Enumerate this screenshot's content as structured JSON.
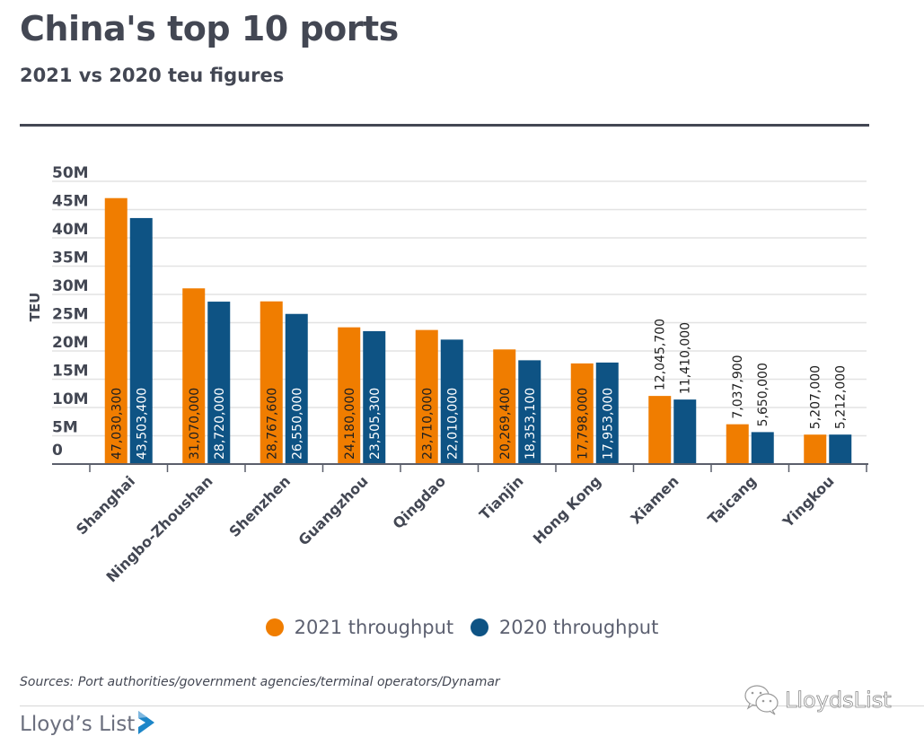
{
  "header": {
    "title": "China's top 10 ports",
    "subtitle": "2021 vs 2020 teu figures"
  },
  "colors": {
    "series_2021": "#f07d00",
    "series_2020": "#0e5384",
    "grid": "#e3e3e3",
    "axis": "#5b5f6b",
    "text": "#434753"
  },
  "chart_data": {
    "type": "bar",
    "title": "China's top 10 ports",
    "subtitle": "2021 vs 2020 teu figures",
    "xlabel": "",
    "ylabel": "TEU",
    "ylim": [
      0,
      50000000
    ],
    "yticks": [
      0,
      5000000,
      10000000,
      15000000,
      20000000,
      25000000,
      30000000,
      35000000,
      40000000,
      45000000,
      50000000
    ],
    "ytick_labels": [
      "0",
      "5M",
      "10M",
      "15M",
      "20M",
      "25M",
      "30M",
      "35M",
      "40M",
      "45M",
      "50M"
    ],
    "grid": true,
    "legend_position": "bottom",
    "categories": [
      "Shanghai",
      "Ningbo-Zhoushan",
      "Shenzhen",
      "Guangzhou",
      "Qingdao",
      "Tianjin",
      "Hong Kong",
      "Xiamen",
      "Taicang",
      "Yingkou"
    ],
    "series": [
      {
        "name": "2021 throughput",
        "color": "#f07d00",
        "values": [
          47030300,
          31070000,
          28767600,
          24180000,
          23710000,
          20269400,
          17798000,
          12045700,
          7037900,
          5207000
        ],
        "labels": [
          "47,030,300",
          "31,070,000",
          "28,767,600",
          "24,180,000",
          "23,710,000",
          "20,269,400",
          "17,798,000",
          "12,045,700",
          "7,037,900",
          "5,207,000"
        ]
      },
      {
        "name": "2020 throughput",
        "color": "#0e5384",
        "values": [
          43503400,
          28720000,
          26550000,
          23505300,
          22010000,
          18353100,
          17953000,
          11410000,
          5650000,
          5212000
        ],
        "labels": [
          "43,503,400",
          "28,720,000",
          "26,550,000",
          "23,505,300",
          "22,010,000",
          "18,353,100",
          "17,953,000",
          "11,410,000",
          "5,650,000",
          "5,212,000"
        ]
      }
    ]
  },
  "legend": {
    "items": [
      {
        "label": "2021 throughput",
        "color": "#f07d00"
      },
      {
        "label": "2020 throughput",
        "color": "#0e5384"
      }
    ]
  },
  "footer": {
    "source": "Sources: Port authorities/government agencies/terminal operators/Dynamar",
    "brand": "Lloyd’s List",
    "watermark": "LloydsList",
    "watermark_icon": "wechat-icon",
    "brand_icon": "play-chevron-icon"
  }
}
